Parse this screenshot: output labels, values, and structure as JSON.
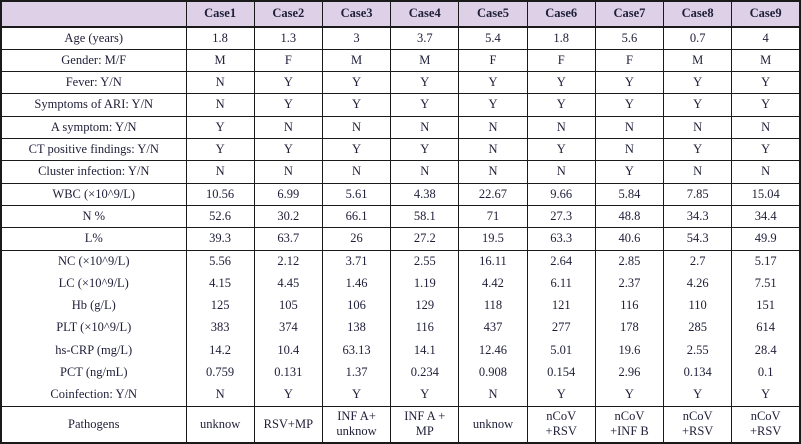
{
  "colors": {
    "header_bg": "#ded1e7",
    "text": "#1e1e38",
    "border": "#1a1a1a"
  },
  "table": {
    "corner": "",
    "columns": [
      "Case1",
      "Case2",
      "Case3",
      "Case4",
      "Case5",
      "Case6",
      "Case7",
      "Case8",
      "Case9"
    ],
    "rows": [
      {
        "label": "Age (years)",
        "values": [
          "1.8",
          "1.3",
          "3",
          "3.7",
          "5.4",
          "1.8",
          "5.6",
          "0.7",
          "4"
        ]
      },
      {
        "label": "Gender: M/F",
        "values": [
          "M",
          "F",
          "M",
          "M",
          "F",
          "F",
          "F",
          "M",
          "M"
        ]
      },
      {
        "label": "Fever: Y/N",
        "values": [
          "N",
          "Y",
          "Y",
          "Y",
          "Y",
          "Y",
          "Y",
          "Y",
          "Y"
        ]
      },
      {
        "label": "Symptoms of ARI: Y/N",
        "values": [
          "N",
          "Y",
          "Y",
          "Y",
          "Y",
          "Y",
          "Y",
          "Y",
          "Y"
        ]
      },
      {
        "label": "A symptom: Y/N",
        "values": [
          "Y",
          "N",
          "N",
          "N",
          "N",
          "N",
          "N",
          "N",
          "N"
        ]
      },
      {
        "label": "CT positive findings: Y/N",
        "values": [
          "Y",
          "Y",
          "Y",
          "Y",
          "N",
          "Y",
          "N",
          "Y",
          "Y"
        ]
      },
      {
        "label": "Cluster infection: Y/N",
        "values": [
          "N",
          "N",
          "N",
          "N",
          "N",
          "N",
          "Y",
          "N",
          "N"
        ]
      },
      {
        "label": "WBC (×10^9/L)",
        "values": [
          "10.56",
          "6.99",
          "5.61",
          "4.38",
          "22.67",
          "9.66",
          "5.84",
          "7.85",
          "15.04"
        ]
      },
      {
        "label": "N %",
        "values": [
          "52.6",
          "30.2",
          "66.1",
          "58.1",
          "71",
          "27.3",
          "48.8",
          "34.3",
          "34.4"
        ]
      },
      {
        "label": "L%",
        "values": [
          "39.3",
          "63.7",
          "26",
          "27.2",
          "19.5",
          "63.3",
          "40.6",
          "54.3",
          "49.9"
        ]
      },
      {
        "label": "NC (×10^9/L)",
        "values": [
          "5.56",
          "2.12",
          "3.71",
          "2.55",
          "16.11",
          "2.64",
          "2.85",
          "2.7",
          "5.17"
        ]
      },
      {
        "label": "LC (×10^9/L)",
        "values": [
          "4.15",
          "4.45",
          "1.46",
          "1.19",
          "4.42",
          "6.11",
          "2.37",
          "4.26",
          "7.51"
        ]
      },
      {
        "label": "Hb (g/L)",
        "values": [
          "125",
          "105",
          "106",
          "129",
          "118",
          "121",
          "116",
          "110",
          "151"
        ]
      },
      {
        "label": "PLT (×10^9/L)",
        "values": [
          "383",
          "374",
          "138",
          "116",
          "437",
          "277",
          "178",
          "285",
          "614"
        ]
      },
      {
        "label": "hs-CRP (mg/L)",
        "values": [
          "14.2",
          "10.4",
          "63.13",
          "14.1",
          "12.46",
          "5.01",
          "19.6",
          "2.55",
          "28.4"
        ]
      },
      {
        "label": "PCT (ng/mL)",
        "values": [
          "0.759",
          "0.131",
          "1.37",
          "0.234",
          "0.908",
          "0.154",
          "2.96",
          "0.134",
          "0.1"
        ]
      },
      {
        "label": "Coinfection: Y/N",
        "values": [
          "N",
          "Y",
          "Y",
          "Y",
          "N",
          "Y",
          "Y",
          "Y",
          "Y"
        ]
      },
      {
        "label": "Pathogens",
        "values": [
          "unknow",
          "RSV+MP",
          "INF A+\nunknow",
          "INF A +\nMP",
          "unknow",
          "nCoV\n+RSV",
          "nCoV\n+INF B",
          "nCoV\n+RSV",
          "nCoV\n+RSV"
        ]
      }
    ]
  }
}
